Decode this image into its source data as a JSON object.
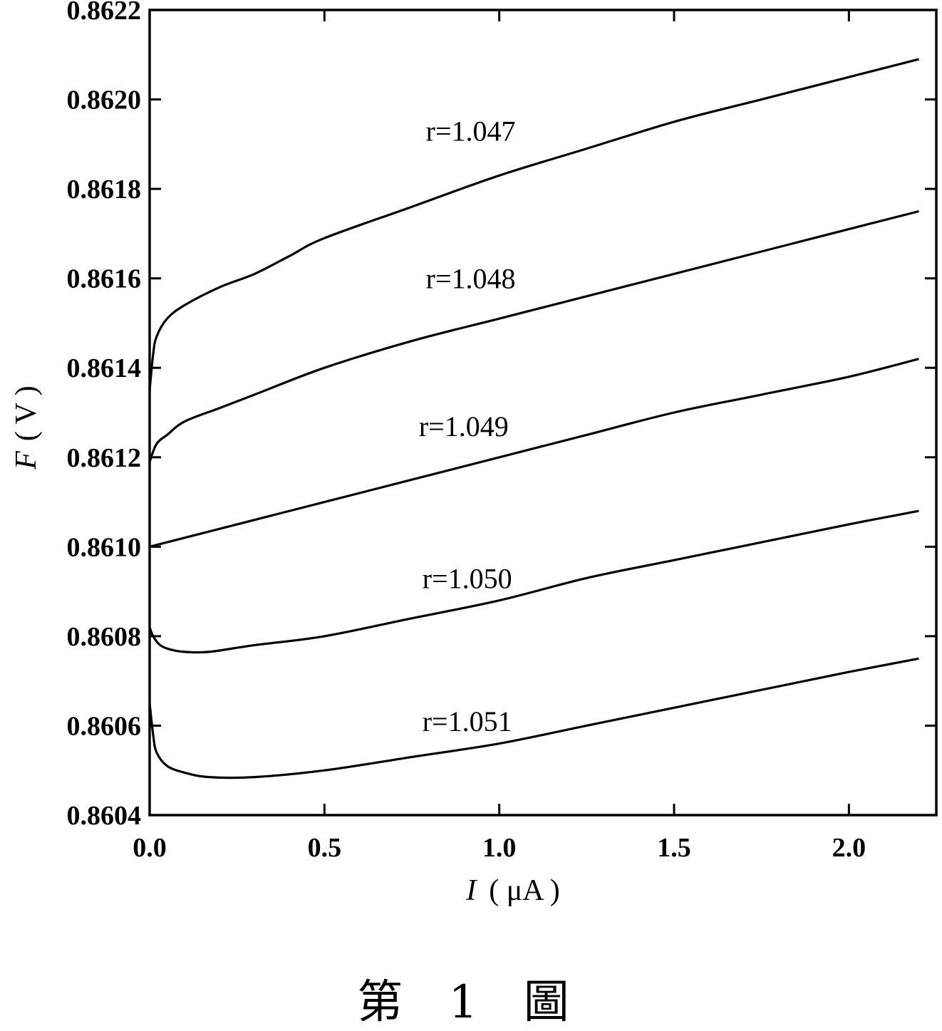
{
  "chart_data": {
    "type": "line",
    "xlabel": {
      "var": "I",
      "unit": "( μA )"
    },
    "ylabel": {
      "var": "F",
      "unit": "( V )"
    },
    "xlim": [
      0.0,
      2.25
    ],
    "ylim": [
      0.8604,
      0.8622
    ],
    "xticks": [
      "0.0",
      "0.5",
      "1.0",
      "1.5",
      "2.0"
    ],
    "xtick_values": [
      0.0,
      0.5,
      1.0,
      1.5,
      2.0
    ],
    "yticks": [
      "0.8604",
      "0.8606",
      "0.8608",
      "0.8610",
      "0.8612",
      "0.8614",
      "0.8616",
      "0.8618",
      "0.8620",
      "0.8622"
    ],
    "ytick_values": [
      0.8604,
      0.8606,
      0.8608,
      0.861,
      0.8612,
      0.8614,
      0.8616,
      0.8618,
      0.862,
      0.8622
    ],
    "grid": false,
    "series": [
      {
        "name": "r=1.047",
        "label_at": [
          0.79,
          0.86193
        ],
        "x": [
          0.0,
          0.01,
          0.02,
          0.05,
          0.1,
          0.2,
          0.3,
          0.4,
          0.5,
          0.75,
          1.0,
          1.25,
          1.5,
          1.75,
          2.0,
          2.2
        ],
        "y": [
          0.86135,
          0.86143,
          0.86147,
          0.86151,
          0.86154,
          0.86158,
          0.86161,
          0.86165,
          0.86169,
          0.86176,
          0.86183,
          0.86189,
          0.86195,
          0.862,
          0.86205,
          0.86209
        ]
      },
      {
        "name": "r=1.048",
        "label_at": [
          0.79,
          0.8616
        ],
        "x": [
          0.0,
          0.02,
          0.05,
          0.1,
          0.2,
          0.3,
          0.5,
          0.75,
          1.0,
          1.25,
          1.5,
          1.75,
          2.0,
          2.2
        ],
        "y": [
          0.86119,
          0.86123,
          0.86125,
          0.86128,
          0.86131,
          0.86134,
          0.8614,
          0.86146,
          0.86151,
          0.86156,
          0.86161,
          0.86166,
          0.86171,
          0.86175
        ]
      },
      {
        "name": "r=1.049",
        "label_at": [
          0.77,
          0.86127
        ],
        "x": [
          0.0,
          0.25,
          0.5,
          0.75,
          1.0,
          1.25,
          1.5,
          1.75,
          2.0,
          2.2
        ],
        "y": [
          0.861,
          0.86105,
          0.8611,
          0.86115,
          0.8612,
          0.86125,
          0.8613,
          0.86134,
          0.86138,
          0.86142
        ]
      },
      {
        "name": "r=1.050",
        "label_at": [
          0.78,
          0.86093
        ],
        "x": [
          0.0,
          0.01,
          0.03,
          0.06,
          0.1,
          0.17,
          0.3,
          0.5,
          0.75,
          1.0,
          1.25,
          1.5,
          1.75,
          2.0,
          2.2
        ],
        "y": [
          0.86082,
          0.8608,
          0.86078,
          0.86077,
          0.860765,
          0.860765,
          0.86078,
          0.8608,
          0.86084,
          0.86088,
          0.86093,
          0.86097,
          0.86101,
          0.86105,
          0.86108
        ]
      },
      {
        "name": "r=1.051",
        "label_at": [
          0.78,
          0.86061
        ],
        "x": [
          0.0,
          0.01,
          0.02,
          0.05,
          0.1,
          0.17,
          0.3,
          0.5,
          0.75,
          1.0,
          1.25,
          1.5,
          1.75,
          2.0,
          2.2
        ],
        "y": [
          0.86065,
          0.86058,
          0.86054,
          0.86051,
          0.860495,
          0.860485,
          0.860485,
          0.8605,
          0.86053,
          0.86056,
          0.8606,
          0.86064,
          0.86068,
          0.86072,
          0.86075
        ]
      }
    ]
  },
  "caption": "第 1 圖"
}
